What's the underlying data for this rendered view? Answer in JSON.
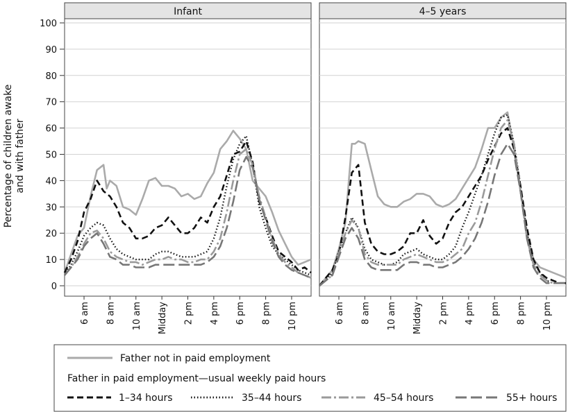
{
  "chart_data": {
    "type": "line",
    "ylabel": [
      "Percentage of children awake",
      "and with father"
    ],
    "ylim": [
      0,
      100
    ],
    "yticks": [
      0,
      10,
      20,
      30,
      40,
      50,
      60,
      70,
      80,
      90,
      100
    ],
    "x_range": [
      4.5,
      23.5
    ],
    "x_ticks": [
      {
        "hour": 6,
        "label": "6 am"
      },
      {
        "hour": 8,
        "label": "8 am"
      },
      {
        "hour": 10,
        "label": "10 am"
      },
      {
        "hour": 12,
        "label": "Midday"
      },
      {
        "hour": 14,
        "label": "2 pm"
      },
      {
        "hour": 16,
        "label": "4 pm"
      },
      {
        "hour": 18,
        "label": "6 pm"
      },
      {
        "hour": 20,
        "label": "8 pm"
      },
      {
        "hour": 22,
        "label": "10 pm"
      }
    ],
    "grid": true,
    "legend_position": "bottom",
    "legend": {
      "group_heading": "Father in paid employment—usual weekly paid hours",
      "entries": [
        {
          "key": "not_employed",
          "label": "Father not in paid employment"
        },
        {
          "key": "h1_34",
          "label": "1–34 hours"
        },
        {
          "key": "h35_44",
          "label": "35–44 hours"
        },
        {
          "key": "h45_54",
          "label": "45–54 hours"
        },
        {
          "key": "h55",
          "label": "55+ hours"
        }
      ]
    },
    "series_styles": {
      "not_employed": {
        "color": "#aaaaaa",
        "dash": "",
        "width": 2.6
      },
      "h1_34": {
        "color": "#111111",
        "dash": "9,5",
        "width": 2.6
      },
      "h35_44": {
        "color": "#111111",
        "dash": "1.5,3",
        "width": 2.4
      },
      "h45_54": {
        "color": "#9a9a9a",
        "dash": "14,4,3,4",
        "width": 2.6
      },
      "h55": {
        "color": "#777777",
        "dash": "16,6",
        "width": 2.6
      }
    },
    "panels": [
      {
        "title": "Infant",
        "series": [
          {
            "key": "not_employed",
            "x": [
              4.5,
              5,
              5.5,
              6,
              6.5,
              7,
              7.5,
              7.75,
              8,
              8.5,
              9,
              9.5,
              10,
              10.5,
              11,
              11.5,
              12,
              12.5,
              13,
              13.5,
              14,
              14.5,
              15,
              15.5,
              16,
              16.5,
              17,
              17.5,
              18,
              18.5,
              19,
              19.5,
              20,
              20.5,
              21,
              21.5,
              22,
              22.5,
              23,
              23.5
            ],
            "y": [
              5,
              12,
              19,
              22,
              34,
              44,
              46,
              37,
              40,
              38,
              30,
              29,
              27,
              33,
              40,
              41,
              38,
              38,
              37,
              34,
              35,
              33,
              34,
              39,
              43,
              52,
              55,
              59,
              56,
              52,
              40,
              37,
              34,
              28,
              21,
              16,
              11,
              8,
              9,
              10
            ]
          },
          {
            "key": "h1_34",
            "x": [
              4.5,
              5,
              5.5,
              6,
              6.5,
              7,
              7.5,
              8,
              8.5,
              9,
              9.5,
              10,
              10.5,
              11,
              11.5,
              12,
              12.5,
              13,
              13.5,
              14,
              14.5,
              15,
              15.5,
              16,
              16.5,
              17,
              17.5,
              18,
              18.5,
              19,
              19.5,
              20,
              20.5,
              21,
              21.5,
              22,
              22.5,
              23,
              23.5
            ],
            "y": [
              5,
              10,
              17,
              28,
              33,
              40,
              36,
              34,
              30,
              24,
              22,
              18,
              18,
              19,
              22,
              23,
              26,
              23,
              20,
              20,
              22,
              26,
              24,
              30,
              34,
              42,
              50,
              51,
              55,
              47,
              32,
              26,
              19,
              13,
              11,
              9,
              6,
              7,
              5
            ]
          },
          {
            "key": "h35_44",
            "x": [
              4.5,
              5,
              5.5,
              6,
              6.5,
              7,
              7.5,
              8,
              8.5,
              9,
              9.5,
              10,
              10.5,
              11,
              11.5,
              12,
              12.5,
              13,
              13.5,
              14,
              14.5,
              15,
              15.5,
              16,
              16.5,
              17,
              17.5,
              18,
              18.5,
              19,
              19.5,
              20,
              20.5,
              21,
              21.5,
              22,
              22.5,
              23,
              23.5
            ],
            "y": [
              4,
              8,
              13,
              19,
              22,
              24,
              23,
              18,
              14,
              12,
              11,
              10,
              10,
              10,
              12,
              13,
              13,
              12,
              11,
              11,
              11,
              12,
              13,
              18,
              26,
              38,
              48,
              54,
              57,
              46,
              30,
              22,
              15,
              12,
              10,
              8,
              6,
              5,
              4
            ]
          },
          {
            "key": "h45_54",
            "x": [
              4.5,
              5,
              5.5,
              6,
              6.5,
              7,
              7.5,
              8,
              8.5,
              9,
              9.5,
              10,
              10.5,
              11,
              11.5,
              12,
              12.5,
              13,
              13.5,
              14,
              14.5,
              15,
              15.5,
              16,
              16.5,
              17,
              17.5,
              18,
              18.5,
              19,
              19.5,
              20,
              20.5,
              21,
              21.5,
              22,
              22.5,
              23,
              23.5
            ],
            "y": [
              4,
              7,
              11,
              16,
              20,
              21,
              18,
              13,
              11,
              10,
              9,
              9,
              8,
              9,
              10,
              10,
              11,
              10,
              10,
              9,
              9,
              10,
              10,
              13,
              18,
              28,
              40,
              50,
              52,
              46,
              34,
              26,
              18,
              12,
              9,
              7,
              5,
              4,
              3
            ]
          },
          {
            "key": "h55",
            "x": [
              4.5,
              5,
              5.5,
              6,
              6.5,
              7,
              7.5,
              8,
              8.5,
              9,
              9.5,
              10,
              10.5,
              11,
              11.5,
              12,
              12.5,
              13,
              13.5,
              14,
              14.5,
              15,
              15.5,
              16,
              16.5,
              17,
              17.5,
              18,
              18.5,
              19,
              19.5,
              20,
              20.5,
              21,
              21.5,
              22,
              22.5,
              23,
              23.5
            ],
            "y": [
              4,
              7,
              10,
              15,
              18,
              20,
              16,
              11,
              10,
              8,
              8,
              7,
              7,
              7,
              8,
              8,
              8,
              8,
              8,
              8,
              8,
              8,
              9,
              11,
              15,
              22,
              32,
              44,
              49,
              45,
              33,
              25,
              17,
              11,
              8,
              6,
              5,
              4,
              3
            ]
          }
        ]
      },
      {
        "title": "4–5 years",
        "series": [
          {
            "key": "not_employed",
            "x": [
              4.5,
              5,
              5.5,
              6,
              6.5,
              7,
              7.25,
              7.5,
              8,
              8.5,
              9,
              9.5,
              10,
              10.5,
              11,
              11.5,
              12,
              12.5,
              13,
              13.5,
              14,
              14.5,
              15,
              15.5,
              16,
              16.5,
              17,
              17.5,
              18,
              18.5,
              19,
              19.5,
              20,
              20.5,
              21,
              21.5,
              22,
              22.5,
              23,
              23.5
            ],
            "y": [
              0,
              3,
              6,
              14,
              24,
              54,
              54,
              55,
              54,
              44,
              34,
              31,
              30,
              30,
              32,
              33,
              35,
              35,
              34,
              31,
              30,
              31,
              33,
              37,
              41,
              45,
              52,
              60,
              60,
              64,
              66,
              52,
              36,
              20,
              10,
              7,
              6,
              5,
              4,
              3
            ]
          },
          {
            "key": "h1_34",
            "x": [
              4.5,
              5,
              5.5,
              6,
              6.5,
              7,
              7.5,
              8,
              8.5,
              9,
              9.5,
              10,
              10.5,
              11,
              11.5,
              12,
              12.5,
              13,
              13.5,
              14,
              14.5,
              15,
              15.5,
              16,
              16.5,
              17,
              17.5,
              18,
              18.5,
              19,
              19.5,
              20,
              20.5,
              21,
              21.5,
              22,
              22.5,
              23,
              23.5
            ],
            "y": [
              0,
              3,
              6,
              12,
              26,
              43,
              46,
              24,
              16,
              13,
              12,
              12,
              13,
              15,
              20,
              20,
              25,
              19,
              16,
              18,
              24,
              28,
              30,
              34,
              38,
              42,
              48,
              53,
              58,
              60,
              52,
              38,
              22,
              10,
              5,
              3,
              2,
              1,
              1
            ]
          },
          {
            "key": "h35_44",
            "x": [
              4.5,
              5,
              5.5,
              6,
              6.5,
              7,
              7.5,
              8,
              8.5,
              9,
              9.5,
              10,
              10.5,
              11,
              11.5,
              12,
              12.5,
              13,
              13.5,
              14,
              14.5,
              15,
              15.5,
              16,
              16.5,
              17,
              17.5,
              18,
              18.5,
              19,
              19.5,
              20,
              20.5,
              21,
              21.5,
              22,
              22.5,
              23,
              23.5
            ],
            "y": [
              0,
              2,
              5,
              13,
              20,
              26,
              22,
              14,
              10,
              9,
              8,
              8,
              9,
              12,
              13,
              14,
              12,
              11,
              10,
              10,
              12,
              15,
              22,
              28,
              35,
              42,
              50,
              58,
              64,
              65,
              54,
              38,
              20,
              9,
              5,
              2,
              1,
              1,
              1
            ]
          },
          {
            "key": "h45_54",
            "x": [
              4.5,
              5,
              5.5,
              6,
              6.5,
              7,
              7.5,
              8,
              8.5,
              9,
              9.5,
              10,
              10.5,
              11,
              11.5,
              12,
              12.5,
              13,
              13.5,
              14,
              14.5,
              15,
              15.5,
              16,
              16.5,
              17,
              17.5,
              18,
              18.5,
              19,
              19.5,
              20,
              20.5,
              21,
              21.5,
              22,
              22.5,
              23,
              23.5
            ],
            "y": [
              0,
              2,
              4,
              12,
              20,
              25,
              22,
              12,
              9,
              8,
              8,
              8,
              8,
              10,
              11,
              12,
              11,
              10,
              9,
              9,
              10,
              12,
              14,
              20,
              24,
              32,
              42,
              52,
              60,
              63,
              54,
              36,
              18,
              8,
              4,
              2,
              1,
              1,
              1
            ]
          },
          {
            "key": "h55",
            "x": [
              4.5,
              5,
              5.5,
              6,
              6.5,
              7,
              7.5,
              8,
              8.5,
              9,
              9.5,
              10,
              10.5,
              11,
              11.5,
              12,
              12.5,
              13,
              13.5,
              14,
              14.5,
              15,
              15.5,
              16,
              16.5,
              17,
              17.5,
              18,
              18.5,
              19,
              19.5,
              20,
              20.5,
              21,
              21.5,
              22,
              22.5,
              23,
              23.5
            ],
            "y": [
              0,
              2,
              4,
              11,
              18,
              22,
              18,
              10,
              7,
              6,
              6,
              6,
              6,
              8,
              9,
              9,
              8,
              8,
              7,
              7,
              8,
              9,
              11,
              14,
              18,
              24,
              32,
              42,
              50,
              54,
              50,
              36,
              18,
              7,
              3,
              1,
              1,
              1,
              1
            ]
          }
        ]
      }
    ]
  }
}
